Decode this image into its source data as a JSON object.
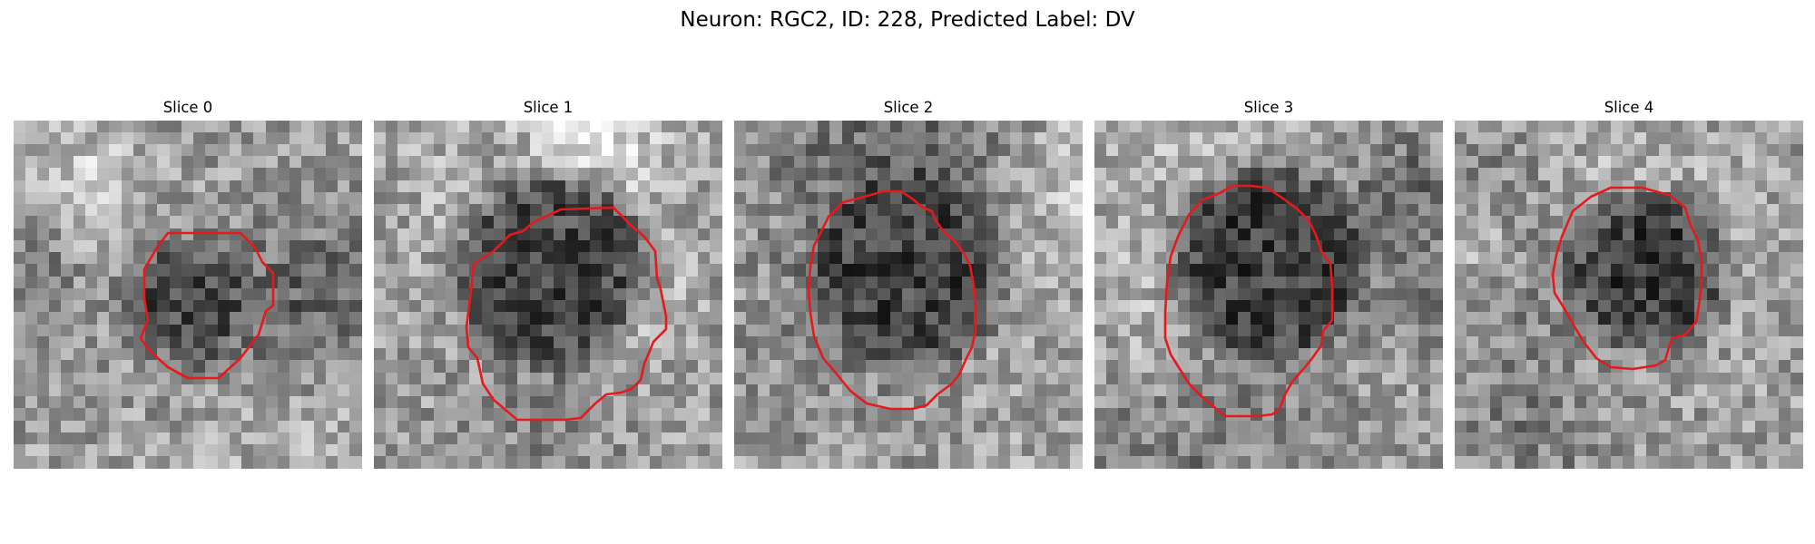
{
  "figure": {
    "title": "Neuron: RGC2, ID: 228, Predicted Label: DV",
    "roi_color": "#e41a1c"
  },
  "slices": [
    {
      "title": "Slice 0"
    },
    {
      "title": "Slice 1"
    },
    {
      "title": "Slice 2"
    },
    {
      "title": "Slice 3"
    },
    {
      "title": "Slice 4"
    }
  ]
}
